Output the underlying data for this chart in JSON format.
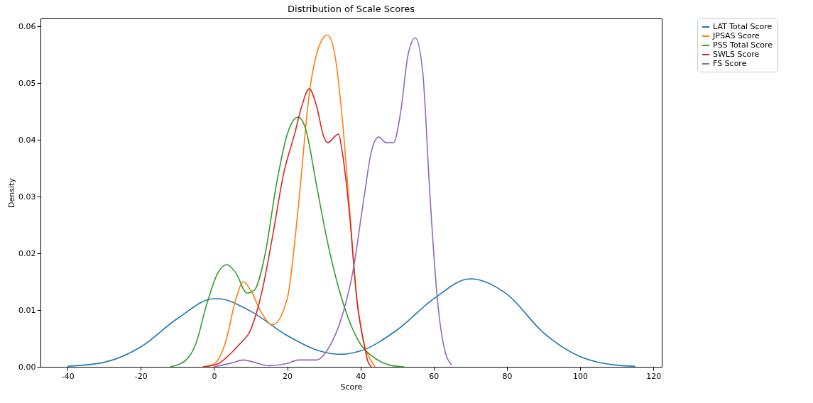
{
  "chart_data": {
    "type": "line",
    "title": "Distribution of Scale Scores",
    "xlabel": "Score",
    "ylabel": "Density",
    "xlim": [
      -47.4,
      122.3
    ],
    "ylim": [
      0,
      0.0614
    ],
    "xticks": [
      -40,
      -20,
      0,
      20,
      40,
      60,
      80,
      100,
      120
    ],
    "yticks": [
      {
        "value": 0,
        "label": "0.00"
      },
      {
        "value": 0.01,
        "label": "0.01"
      },
      {
        "value": 0.02,
        "label": "0.02"
      },
      {
        "value": 0.03,
        "label": "0.03"
      },
      {
        "value": 0.04,
        "label": "0.04"
      },
      {
        "value": 0.05,
        "label": "0.05"
      },
      {
        "value": 0.06,
        "label": "0.06"
      }
    ],
    "legend": "top right",
    "grid": false,
    "series": [
      {
        "name": "LAT Total Score",
        "color": "#1f77b4",
        "x": [
          -40,
          -30,
          -20,
          -10,
          0,
          1,
          10,
          20,
          30,
          35,
          40,
          50,
          60,
          70,
          80,
          90,
          100,
          110,
          115
        ],
        "values": [
          0.0001,
          0.0008,
          0.0035,
          0.0085,
          0.012,
          0.012,
          0.0098,
          0.0055,
          0.0026,
          0.0022,
          0.0028,
          0.0065,
          0.012,
          0.0155,
          0.0128,
          0.006,
          0.0018,
          0.0003,
          0.0001
        ]
      },
      {
        "name": "JPSAS Score",
        "color": "#ff7f0e",
        "x": [
          -3,
          0,
          3,
          6,
          8,
          10,
          13,
          16,
          20,
          23,
          26,
          29,
          31,
          33,
          35,
          37,
          39,
          41,
          43,
          44
        ],
        "values": [
          0,
          0.0005,
          0.004,
          0.012,
          0.015,
          0.0135,
          0.0095,
          0.0074,
          0.012,
          0.028,
          0.048,
          0.057,
          0.0585,
          0.055,
          0.044,
          0.028,
          0.012,
          0.004,
          0.001,
          0
        ]
      },
      {
        "name": "PSS Total Score",
        "color": "#2ca02c",
        "x": [
          -12,
          -8,
          -5,
          -2,
          1,
          3.5,
          6,
          9,
          11,
          14,
          17,
          20,
          23,
          25,
          28,
          31,
          34,
          37,
          40,
          44,
          48,
          52
        ],
        "values": [
          0,
          0.001,
          0.004,
          0.011,
          0.0165,
          0.018,
          0.0165,
          0.013,
          0.0135,
          0.02,
          0.032,
          0.041,
          0.044,
          0.042,
          0.032,
          0.022,
          0.014,
          0.008,
          0.004,
          0.0015,
          0.0003,
          0
        ]
      },
      {
        "name": "SWLS Score",
        "color": "#d62728",
        "x": [
          -3,
          1,
          4,
          7,
          10,
          13,
          16,
          19,
          22,
          24,
          26,
          28,
          30,
          31,
          34,
          35,
          37,
          39,
          41,
          42,
          43
        ],
        "values": [
          0,
          0.0005,
          0.002,
          0.004,
          0.0065,
          0.013,
          0.023,
          0.034,
          0.041,
          0.046,
          0.049,
          0.046,
          0.0405,
          0.0395,
          0.041,
          0.038,
          0.027,
          0.012,
          0.004,
          0.001,
          0
        ]
      },
      {
        "name": "FS Score",
        "color": "#9467bd",
        "x": [
          0,
          5,
          8,
          11,
          15,
          20,
          23,
          28,
          31,
          35,
          38,
          41,
          43,
          45,
          47,
          49,
          51,
          53,
          55,
          57,
          59,
          61,
          63,
          65
        ],
        "values": [
          0,
          0.0007,
          0.0012,
          0.0008,
          0.0002,
          0.0006,
          0.0012,
          0.0012,
          0.003,
          0.009,
          0.017,
          0.03,
          0.038,
          0.0405,
          0.0395,
          0.0395,
          0.045,
          0.055,
          0.058,
          0.052,
          0.03,
          0.012,
          0.003,
          0.0003
        ]
      }
    ]
  }
}
